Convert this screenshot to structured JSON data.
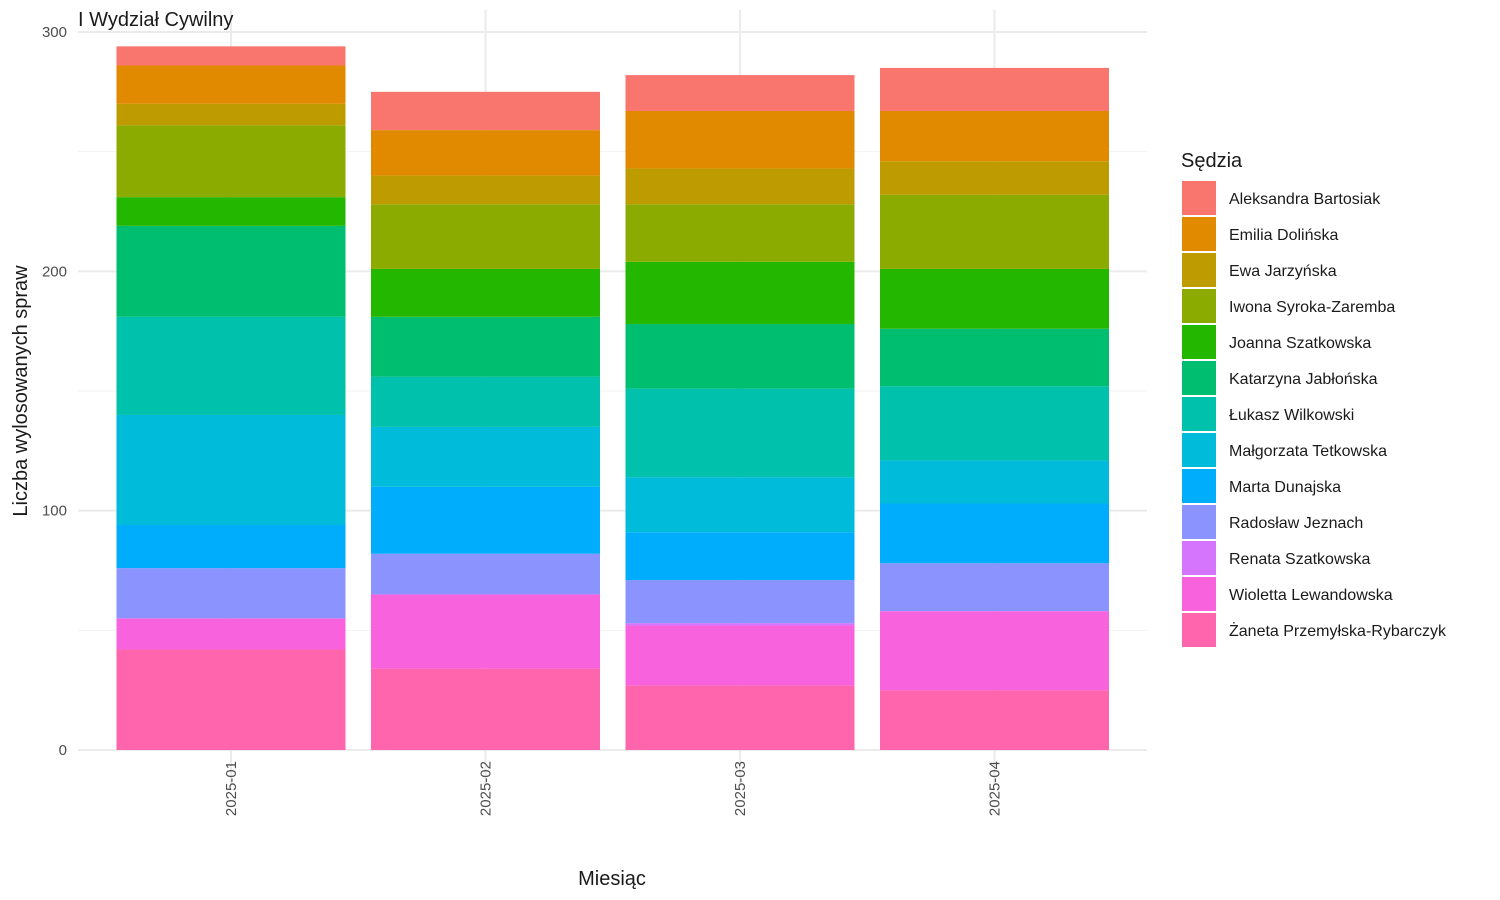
{
  "chart_data": {
    "type": "bar",
    "stacked": true,
    "title": "I Wydział Cywilny",
    "xlabel": "Miesiąc",
    "ylabel": "Liczba wylosowanych spraw",
    "ylim": [
      0,
      300
    ],
    "yticks": [
      0,
      100,
      200,
      300
    ],
    "categories": [
      "2025-01",
      "2025-02",
      "2025-03",
      "2025-04"
    ],
    "legend_title": "Sędzia",
    "legend_position": "right",
    "grid": true,
    "series": [
      {
        "name": "Aleksandra Bartosiak",
        "color": "#F8766D",
        "values": [
          8,
          16,
          15,
          18
        ]
      },
      {
        "name": "Emilia Dolińska",
        "color": "#E18A00",
        "values": [
          16,
          19,
          24,
          21
        ]
      },
      {
        "name": "Ewa Jarzyńska",
        "color": "#BE9C00",
        "values": [
          9,
          12,
          15,
          14
        ]
      },
      {
        "name": "Iwona Syroka-Zaremba",
        "color": "#8CAB00",
        "values": [
          30,
          27,
          24,
          31
        ]
      },
      {
        "name": "Joanna Szatkowska",
        "color": "#24B700",
        "values": [
          12,
          20,
          26,
          25
        ]
      },
      {
        "name": "Katarzyna Jabłońska",
        "color": "#00BE70",
        "values": [
          38,
          25,
          27,
          24
        ]
      },
      {
        "name": "Łukasz Wilkowski",
        "color": "#00C1AB",
        "values": [
          41,
          21,
          37,
          31
        ]
      },
      {
        "name": "Małgorzata Tetkowska",
        "color": "#00BBDA",
        "values": [
          46,
          25,
          23,
          18
        ]
      },
      {
        "name": "Marta Dunajska",
        "color": "#00ACFC",
        "values": [
          18,
          28,
          20,
          25
        ]
      },
      {
        "name": "Radosław Jeznach",
        "color": "#8B93FF",
        "values": [
          21,
          17,
          18,
          20
        ]
      },
      {
        "name": "Renata Szatkowska",
        "color": "#D575FE",
        "values": [
          0,
          0,
          1,
          0
        ]
      },
      {
        "name": "Wioletta Lewandowska",
        "color": "#F962DD",
        "values": [
          13,
          31,
          25,
          33
        ]
      },
      {
        "name": "Żaneta Przemyłska-Rybarczyk",
        "color": "#FF65AC",
        "values": [
          42,
          34,
          27,
          25
        ]
      }
    ]
  }
}
